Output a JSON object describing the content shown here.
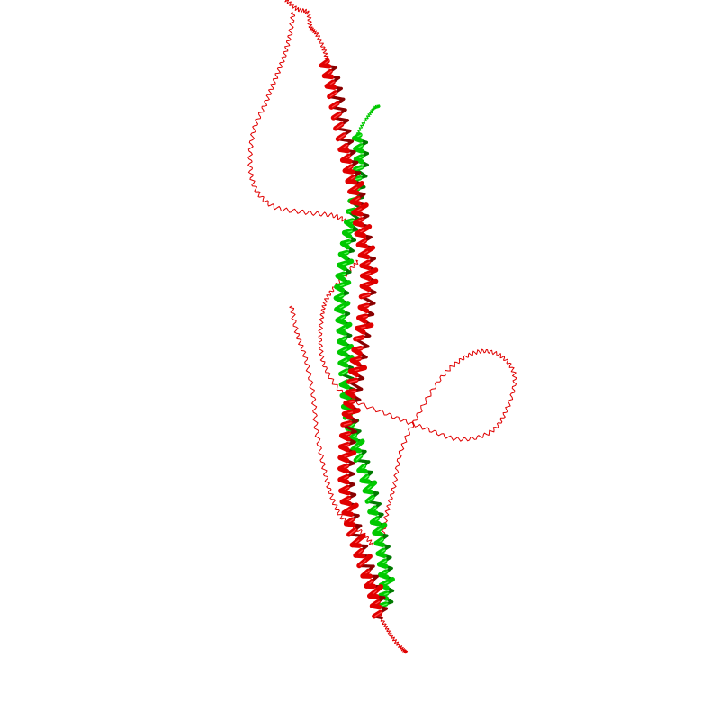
{
  "scene": {
    "background": "#ffffff",
    "chains": [
      {
        "id": "A",
        "color": "#e00000",
        "dark": "#8a0000",
        "light": "#ff4a4a"
      },
      {
        "id": "B",
        "color": "#00c800",
        "dark": "#007a00",
        "light": "#5cff5c"
      }
    ]
  }
}
